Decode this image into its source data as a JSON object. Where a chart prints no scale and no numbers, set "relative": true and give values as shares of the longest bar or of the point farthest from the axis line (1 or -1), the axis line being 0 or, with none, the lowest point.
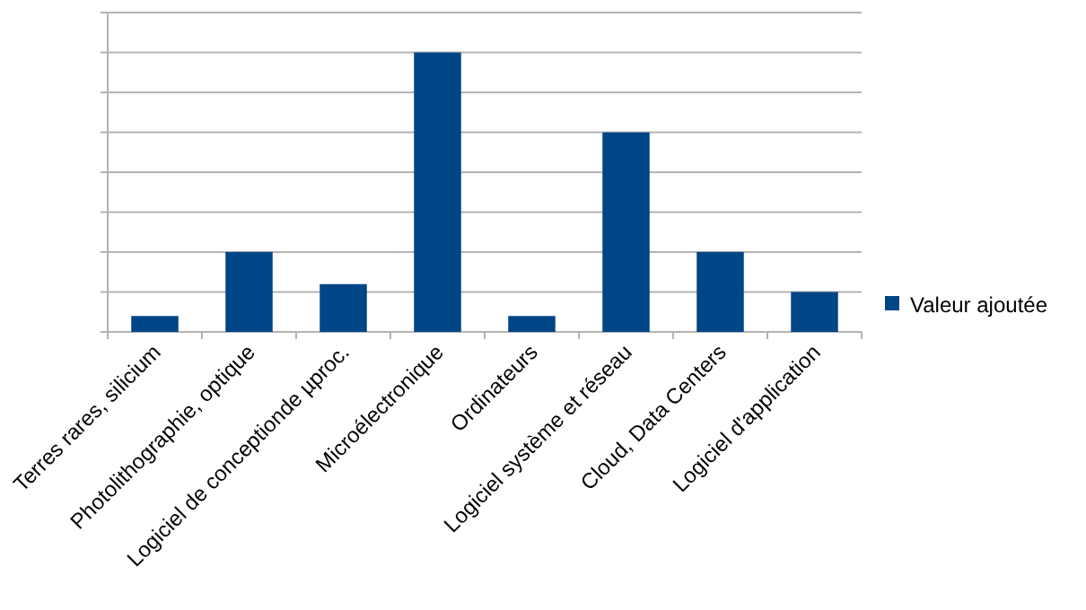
{
  "chart_data": {
    "type": "bar",
    "relative": true,
    "grid": "y",
    "legend": "right",
    "categories": [
      "Terres rares, silicium",
      "Photolithographie, optique",
      "Logiciel de conceptionde µproc.",
      "Microélectronique",
      "Ordinateurs",
      "Logiciel système et réseau",
      "Cloud, Data Centers",
      "Logiciel d'application"
    ],
    "series": [
      {
        "name": "Valeur ajoutée",
        "color": "#004586",
        "values": [
          0.057,
          0.286,
          0.171,
          1,
          0.057,
          0.714,
          0.286,
          0.143
        ]
      }
    ]
  }
}
